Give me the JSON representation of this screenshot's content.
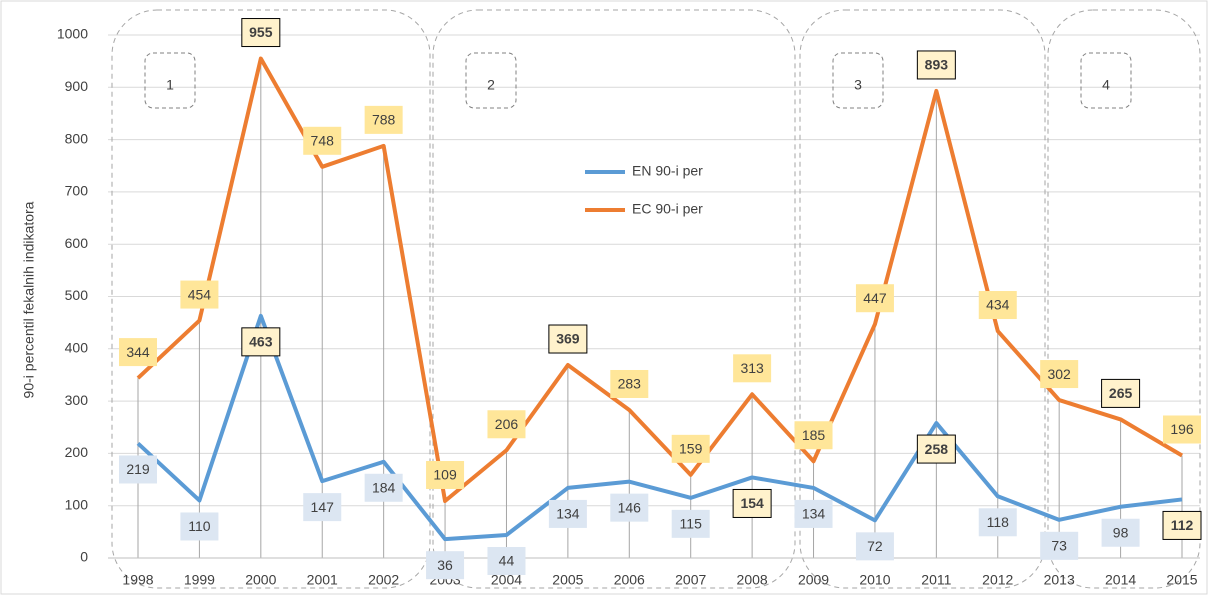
{
  "chart_data": {
    "type": "line",
    "y_label": "90-i percentil fekalnih indikatora",
    "categories": [
      "1998",
      "1999",
      "2000",
      "2001",
      "2002",
      "2003",
      "2004",
      "2005",
      "2006",
      "2007",
      "2008",
      "2009",
      "2010",
      "2011",
      "2012",
      "2013",
      "2014",
      "2015"
    ],
    "series": [
      {
        "name": "EN 90-i per",
        "color": "#5b9bd5",
        "label_fill": "#dce6f2",
        "emphasized": [
          2,
          10,
          13,
          17
        ],
        "values": [
          219,
          110,
          463,
          147,
          184,
          36,
          44,
          134,
          146,
          115,
          154,
          134,
          72,
          258,
          118,
          73,
          98,
          112
        ]
      },
      {
        "name": "EC 90-i per",
        "color": "#ed7d31",
        "label_fill": "#ffe699",
        "emphasized": [
          2,
          7,
          13,
          16
        ],
        "values": [
          344,
          454,
          955,
          748,
          788,
          109,
          206,
          369,
          283,
          159,
          313,
          185,
          447,
          893,
          434,
          302,
          265,
          196
        ]
      }
    ],
    "ylim": [
      0,
      1000
    ],
    "yticks": [
      0,
      100,
      200,
      300,
      400,
      500,
      600,
      700,
      800,
      900,
      1000
    ],
    "grid": true,
    "regions": [
      "1",
      "2",
      "3",
      "4"
    ]
  }
}
